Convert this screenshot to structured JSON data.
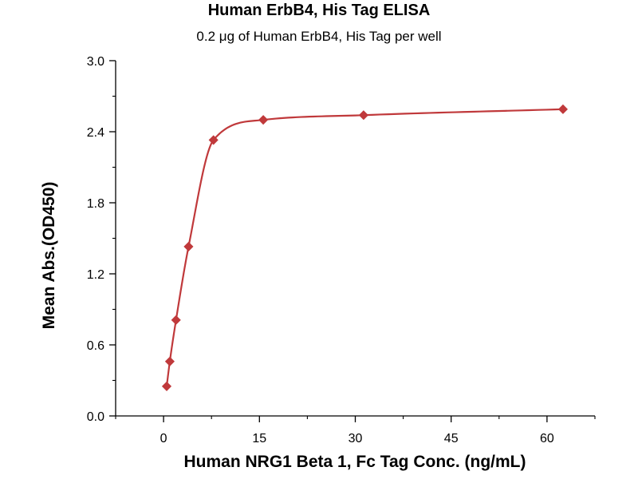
{
  "chart_data": {
    "type": "scatter",
    "title": "Human ErbB4, His Tag ELISA",
    "subtitle": "0.2 μg of Human ErbB4, His Tag per well",
    "xlabel": "Human NRG1 Beta 1, Fc Tag Conc. (ng/mL)",
    "ylabel": "Mean Abs.(OD450)",
    "xlim": [
      -7.5,
      67.5
    ],
    "ylim": [
      0.0,
      3.0
    ],
    "x_ticks": [
      0,
      15,
      30,
      45,
      60
    ],
    "x_tick_labels": [
      "0",
      "15",
      "30",
      "45",
      "60"
    ],
    "y_ticks": [
      0.0,
      0.6,
      1.2,
      1.8,
      2.4,
      3.0
    ],
    "y_tick_labels": [
      "0.0",
      "0.6",
      "1.2",
      "1.8",
      "2.4",
      "3.0"
    ],
    "grid": false,
    "series": [
      {
        "x": [
          0.488,
          0.977,
          1.95,
          3.91,
          7.81,
          15.6,
          31.3,
          62.5
        ],
        "y": [
          0.25,
          0.46,
          0.81,
          1.43,
          2.33,
          2.5,
          2.54,
          2.59
        ],
        "marker": "diamond",
        "fit_line": true
      }
    ],
    "colors": {
      "series": "#c0393b"
    }
  }
}
